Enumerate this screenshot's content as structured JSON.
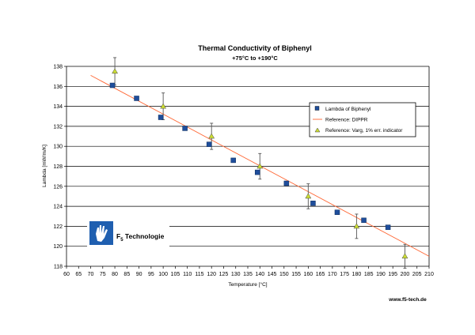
{
  "chart_data": {
    "type": "scatter",
    "title": "Thermal Conductivity of Biphenyl",
    "subtitle": "+75°C to +190°C",
    "xlabel": "Temperature [°C]",
    "ylabel": "Lambda [mW/m/K]",
    "xlim": [
      60,
      210
    ],
    "ylim": [
      118,
      138
    ],
    "xticks": [
      "60",
      "65",
      "70",
      "75",
      "80",
      "85",
      "90",
      "95",
      "100",
      "105",
      "110",
      "115",
      "120",
      "125",
      "130",
      "135",
      "140",
      "145",
      "150",
      "155",
      "160",
      "165",
      "170",
      "175",
      "180",
      "185",
      "190",
      "195",
      "200",
      "205",
      "210"
    ],
    "yticks": [
      "118",
      "120",
      "122",
      "124",
      "126",
      "128",
      "130",
      "132",
      "134",
      "136",
      "138"
    ],
    "grid": "horizontal",
    "legend_position": "right",
    "series": [
      {
        "name": "Lambda of Biphenyl",
        "marker": "square",
        "color": "#1f4e9c",
        "x": [
          79,
          89,
          99,
          109,
          119,
          129,
          139,
          151,
          162,
          172,
          183,
          193
        ],
        "y": [
          136.1,
          134.8,
          132.9,
          131.8,
          130.2,
          128.6,
          127.4,
          126.3,
          124.3,
          123.4,
          122.6,
          121.9
        ]
      },
      {
        "name": "Reference: DIPPR",
        "marker": "line",
        "color": "#ff6633",
        "x": [
          70,
          210
        ],
        "y": [
          137.1,
          119.0
        ]
      },
      {
        "name": "Reference: Varg, 1% err. indicator",
        "marker": "triangle",
        "color": "#ccdd33",
        "x": [
          80,
          100,
          120,
          140,
          160,
          180,
          200
        ],
        "y": [
          137.5,
          134.0,
          131.0,
          128.0,
          125.0,
          122.0,
          119.0
        ],
        "error_percent": 1
      }
    ]
  },
  "logo": {
    "text_main": "F",
    "text_sub": "5",
    "text_rest": " Technologie",
    "color": "#1f5fb0"
  },
  "footer": {
    "url": "www.f5-tech.de"
  }
}
